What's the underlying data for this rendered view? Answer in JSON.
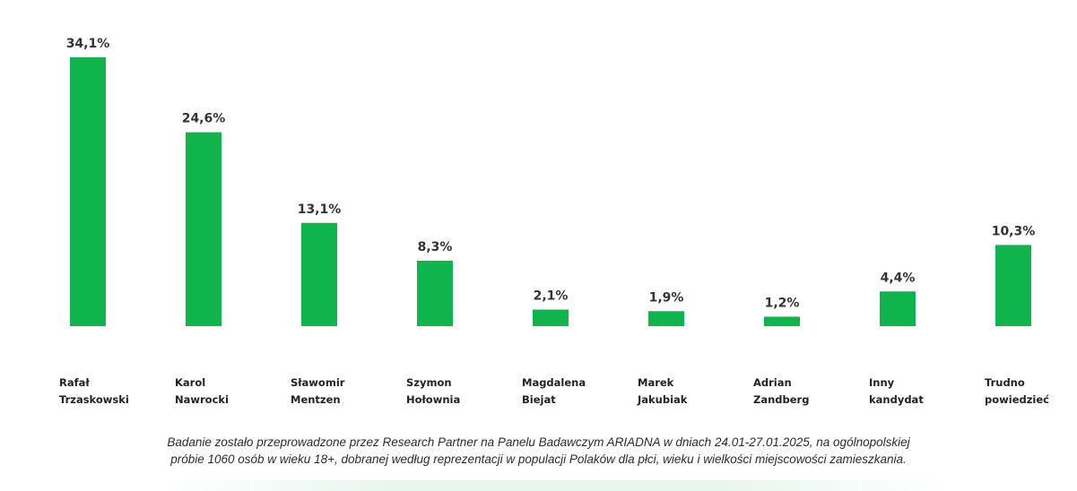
{
  "colors": {
    "bar": "#10b44c",
    "text": "#222222"
  },
  "chart_data": {
    "type": "bar",
    "categories": [
      [
        "Rafał",
        "Trzaskowski"
      ],
      [
        "Karol",
        "Nawrocki"
      ],
      [
        "Sławomir",
        "Mentzen"
      ],
      [
        "Szymon",
        "Hołownia"
      ],
      [
        "Magdalena",
        "Biejat"
      ],
      [
        "Marek",
        "Jakubiak"
      ],
      [
        "Adrian",
        "Zandberg"
      ],
      [
        "Inny",
        "kandydat"
      ],
      [
        "Trudno",
        "powiedzieć"
      ]
    ],
    "values": [
      34.1,
      24.6,
      13.1,
      8.3,
      2.1,
      1.9,
      1.2,
      4.4,
      10.3
    ],
    "value_labels": [
      "34,1%",
      "24,6%",
      "13,1%",
      "8,3%",
      "2,1%",
      "1,9%",
      "1,2%",
      "4,4%",
      "10,3%"
    ],
    "title": "",
    "xlabel": "",
    "ylabel": "",
    "ylim": [
      0,
      34.1
    ],
    "grid": false,
    "legend": "none"
  },
  "footnote": {
    "line1": "Badanie zostało przeprowadzone przez Research Partner na Panelu Badawczym ARIADNA w dniach 24.01-27.01.2025, na ogólnopolskiej",
    "line2": "próbie 1060 osób w wieku 18+, dobranej według reprezentacji w populacji Polaków dla płci, wieku i wielkości miejscowości zamieszkania."
  }
}
